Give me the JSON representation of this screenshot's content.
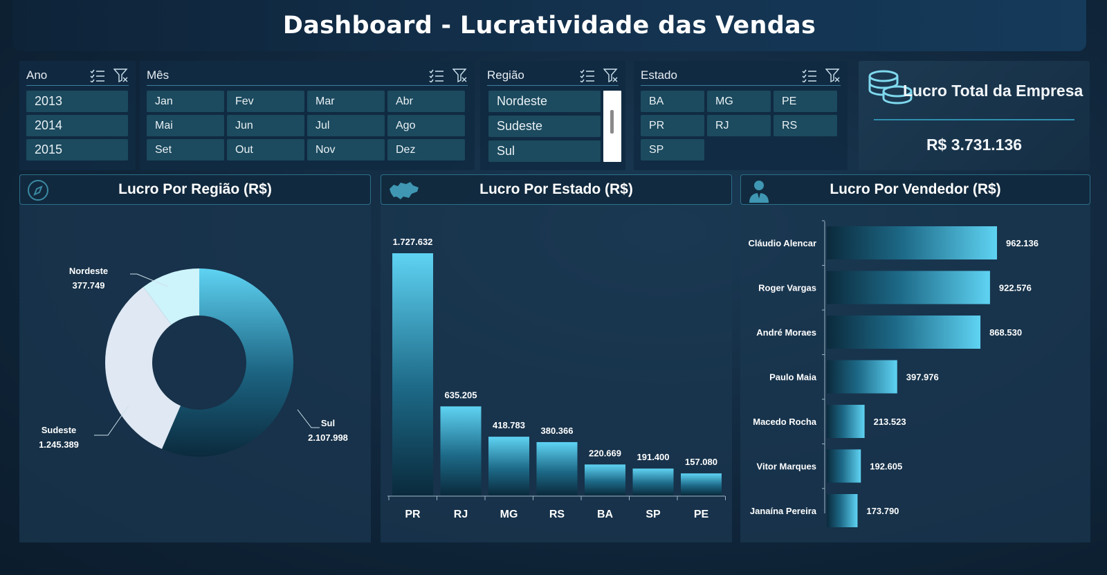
{
  "header": {
    "title": "Dashboard - Lucratividade das Vendas"
  },
  "slicers": {
    "ano": {
      "label": "Ano",
      "items": [
        "2013",
        "2014",
        "2015"
      ]
    },
    "mes": {
      "label": "Mês",
      "items": [
        "Jan",
        "Fev",
        "Mar",
        "Abr",
        "Mai",
        "Jun",
        "Jul",
        "Ago",
        "Set",
        "Out",
        "Nov",
        "Dez"
      ]
    },
    "regiao": {
      "label": "Região",
      "items": [
        "Nordeste",
        "Sudeste",
        "Sul"
      ]
    },
    "estado": {
      "label": "Estado",
      "items": [
        "BA",
        "MG",
        "PE",
        "PR",
        "RJ",
        "RS",
        "SP"
      ]
    }
  },
  "kpi": {
    "title": "Lucro Total da Empresa",
    "value": "R$ 3.731.136",
    "icon": "coins-icon"
  },
  "panels": {
    "regiao": {
      "title": "Lucro Por Região (R$)",
      "icon": "compass-icon"
    },
    "estado": {
      "title": "Lucro Por Estado (R$)",
      "icon": "brazil-map-icon"
    },
    "vendedor": {
      "title": "Lucro Por Vendedor (R$)",
      "icon": "person-icon"
    }
  },
  "colors": {
    "accent": "#5fd3f3",
    "dark": "#0c2f44",
    "light": "#e1eaf4",
    "paleCyan": "#cdf3fb"
  },
  "chart_data": [
    {
      "type": "pie",
      "title": "Lucro Por Região (R$)",
      "categories": [
        "Sul",
        "Sudeste",
        "Nordeste"
      ],
      "values": [
        2107998,
        1245389,
        377749
      ],
      "labels": [
        "2.107.998",
        "1.245.389",
        "377.749"
      ],
      "donut": true
    },
    {
      "type": "bar",
      "title": "Lucro Por Estado (R$)",
      "categories": [
        "PR",
        "RJ",
        "MG",
        "RS",
        "BA",
        "SP",
        "PE"
      ],
      "values": [
        1727632,
        635205,
        418783,
        380366,
        220669,
        191400,
        157080
      ],
      "labels": [
        "1.727.632",
        "635.205",
        "418.783",
        "380.366",
        "220.669",
        "191.400",
        "157.080"
      ]
    },
    {
      "type": "bar",
      "orientation": "horizontal",
      "title": "Lucro Por Vendedor (R$)",
      "categories": [
        "Cláudio Alencar",
        "Roger Vargas",
        "André Moraes",
        "Paulo Maia",
        "Macedo Rocha",
        "Vitor Marques",
        "Janaína Pereira"
      ],
      "values": [
        962136,
        922576,
        868530,
        397976,
        213523,
        192605,
        173790
      ],
      "labels": [
        "962.136",
        "922.576",
        "868.530",
        "397.976",
        "213.523",
        "192.605",
        "173.790"
      ]
    }
  ]
}
